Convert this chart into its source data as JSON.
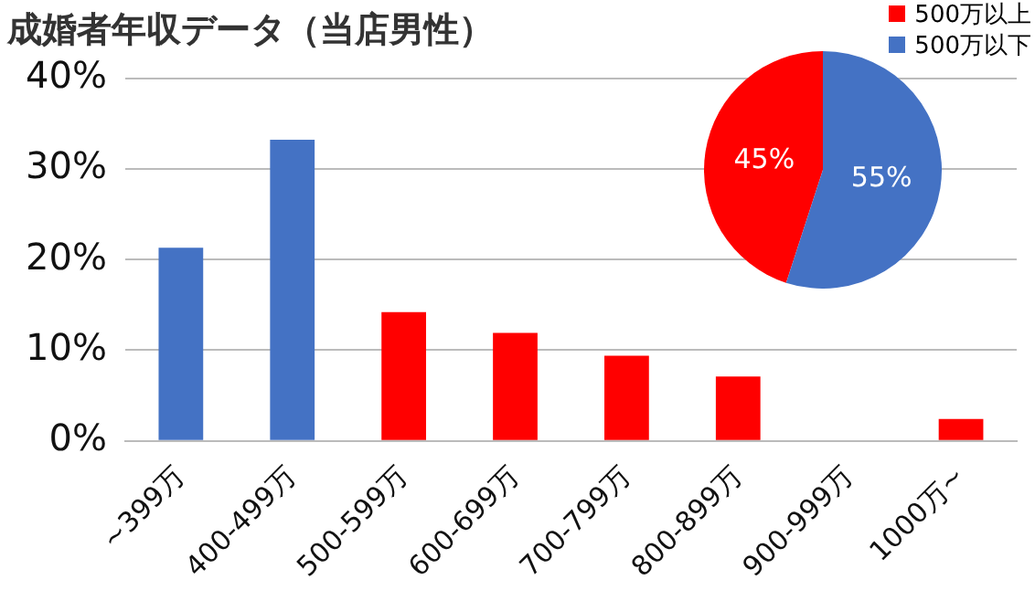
{
  "chart_data": [
    {
      "type": "bar",
      "title": "成婚者年収データ（当店男性）",
      "categories": [
        "~399万",
        "400-499万",
        "500-599万",
        "600-699万",
        "700-799万",
        "800-899万",
        "900-999万",
        "1000万~"
      ],
      "values": [
        21.3,
        33.2,
        14.2,
        11.9,
        9.4,
        7.1,
        0,
        2.4
      ],
      "colors": [
        "#4472c4",
        "#4472c4",
        "#ff0000",
        "#ff0000",
        "#ff0000",
        "#ff0000",
        "#ff0000",
        "#ff0000"
      ],
      "ylim": [
        0,
        40
      ],
      "yticks": [
        {
          "value": 0,
          "label": "0%"
        },
        {
          "value": 10,
          "label": "10%"
        },
        {
          "value": 20,
          "label": "20%"
        },
        {
          "value": 30,
          "label": "30%"
        },
        {
          "value": 40,
          "label": "40%"
        }
      ],
      "grid": "y",
      "legend": false
    },
    {
      "type": "pie",
      "categories": [
        "500万以上",
        "500万以下"
      ],
      "values": [
        45,
        55
      ],
      "colors": [
        "#ff0000",
        "#4472c4"
      ],
      "value_labels": [
        "45%",
        "55%"
      ],
      "legend": "top right"
    }
  ]
}
